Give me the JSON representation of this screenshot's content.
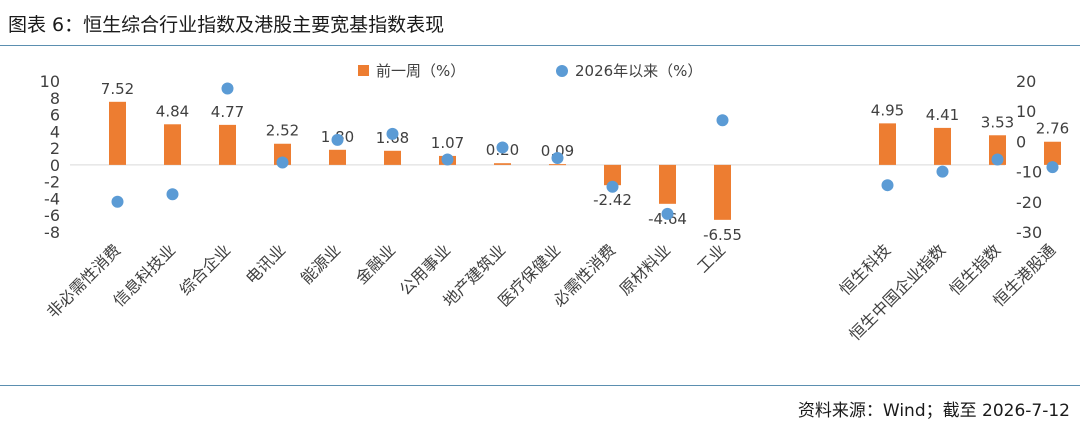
{
  "figure": {
    "title": "图表 6：恒生综合行业指数及港股主要宽基指数表现",
    "source": "资料来源：Wind；截至 2026-7-12"
  },
  "chart_data": {
    "type": "bar",
    "categories": [
      "非必需性消费",
      "信息科技业",
      "综合企业",
      "电讯业",
      "能源业",
      "金融业",
      "公用事业",
      "地产建筑业",
      "医疗保健业",
      "必需性消费",
      "原材料业",
      "工业",
      "恒生科技",
      "恒生中国企业指数",
      "恒生指数",
      "恒生港股通"
    ],
    "series": [
      {
        "name": "前一周（%）",
        "type": "bar",
        "axis": "left",
        "color": "#ed7d31",
        "values": [
          7.52,
          4.84,
          4.77,
          2.52,
          1.8,
          1.68,
          1.07,
          0.2,
          0.09,
          -2.42,
          -4.64,
          -6.55,
          4.95,
          4.41,
          3.53,
          2.76
        ],
        "labels": [
          "7.52",
          "4.84",
          "4.77",
          "2.52",
          "1.80",
          "1.68",
          "1.07",
          "0.20",
          "0.09",
          "-2.42",
          "-4.64",
          "-6.55",
          "4.95",
          "4.41",
          "3.53",
          "2.76"
        ]
      },
      {
        "name": "2026年以来（%）",
        "type": "scatter",
        "axis": "right",
        "color": "#5b9bd5",
        "values": [
          -20,
          -17.5,
          17.5,
          -7,
          0.5,
          2.5,
          -6,
          -2,
          -5.5,
          -15,
          -24,
          7,
          -14.5,
          -10,
          -6,
          -8.5
        ]
      }
    ],
    "gap_after_index": 11,
    "y_left": {
      "min": -8,
      "max": 10,
      "ticks": [
        "10",
        "8",
        "6",
        "4",
        "2",
        "0",
        "-2",
        "-4",
        "-6",
        "-8"
      ]
    },
    "y_right": {
      "min": -30,
      "max": 20,
      "ticks": [
        "20",
        "10",
        "0",
        "-10",
        "-20",
        "-30"
      ]
    },
    "grid": false,
    "legend_position": "top-center"
  }
}
